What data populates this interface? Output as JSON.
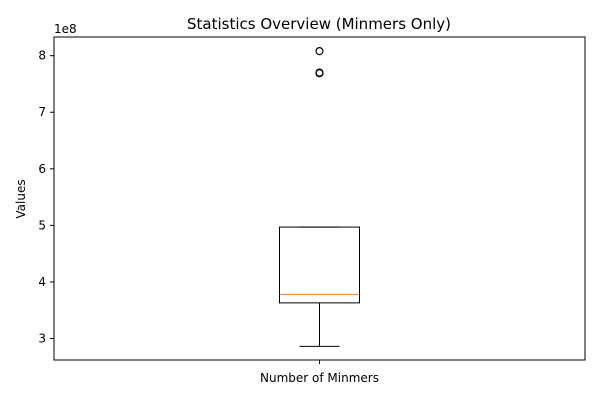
{
  "chart_data": {
    "type": "box",
    "title": "Statistics Overview (Minmers Only)",
    "xlabel": "",
    "ylabel": "Values",
    "y_offset_label": "1e8",
    "y_multiplier": 100000000,
    "categories": [
      "Number of Minmers"
    ],
    "ylim": [
      262000000,
      833000000
    ],
    "yticks": [
      300000000,
      400000000,
      500000000,
      600000000,
      700000000,
      800000000
    ],
    "ytick_labels": [
      "3",
      "4",
      "5",
      "6",
      "7",
      "8"
    ],
    "grid": false,
    "box": {
      "whisker_low": 286000000,
      "q1": 363000000,
      "median": 378000000,
      "q3": 497000000,
      "whisker_high": 497000000,
      "outliers": [
        769000000,
        770000000,
        808000000
      ]
    },
    "colors": {
      "box": "#000000",
      "median": "#ff7f0e",
      "text": "#000000"
    }
  }
}
